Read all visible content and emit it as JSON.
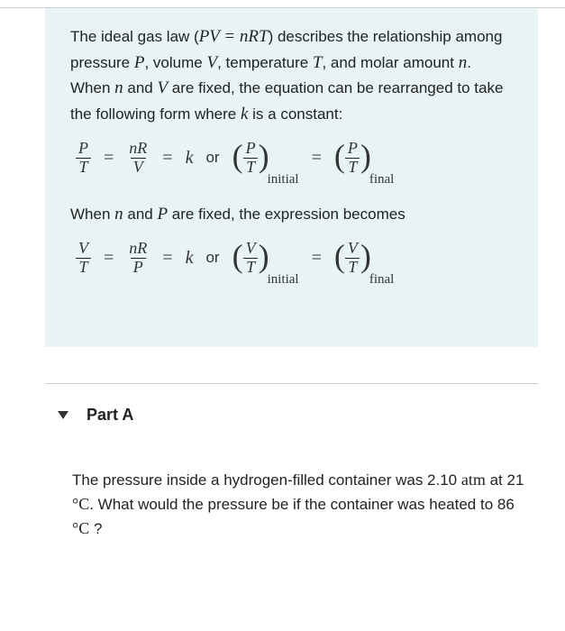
{
  "info": {
    "intro_part1": "The ideal gas law (",
    "eq_inline": "PV = nRT",
    "intro_part2": ") describes the relationship among pressure ",
    "var_P": "P",
    "intro_part3": ", volume ",
    "var_V": "V",
    "intro_part4": ", temperature ",
    "var_T": "T",
    "intro_part5": ", and molar amount ",
    "var_n": "n",
    "intro_part6": ". When ",
    "intro_part7": " and ",
    "intro_part8": " are fixed, the equation can be rearranged to take the following form where ",
    "var_k": "k",
    "intro_part9": " is a constant:",
    "second_intro1": "When ",
    "second_intro2": " and ",
    "second_intro3": " are fixed, the expression becomes"
  },
  "math": {
    "P": "P",
    "T": "T",
    "V": "V",
    "nR": "nR",
    "k": "k",
    "eq": "=",
    "or": "or",
    "sub_initial": "initial",
    "sub_final": "final"
  },
  "part": {
    "label": "Part A",
    "question_1": "The pressure inside a hydrogen-filled container was ",
    "val1": "2.10",
    "unit1": "atm",
    "question_2": " at ",
    "val2": "21",
    "degC": "°C",
    "question_3": ". What would the pressure be if the container was heated to ",
    "val3": "86",
    "question_4": " ?"
  },
  "colors": {
    "info_bg": "#e8f4f4",
    "text": "#222222",
    "border": "#d0d0d0"
  }
}
